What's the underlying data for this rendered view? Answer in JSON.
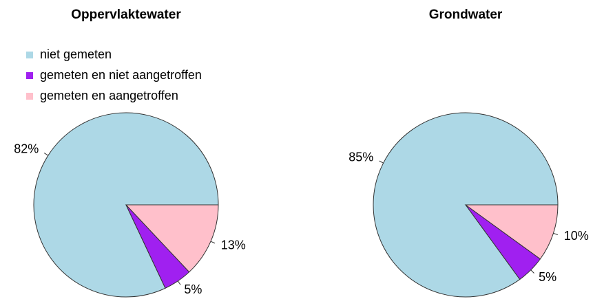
{
  "chart_data": [
    {
      "type": "pie",
      "title": "Oppervlaktewater",
      "categories": [
        "niet gemeten",
        "gemeten en niet aangetroffen",
        "gemeten en aangetroffen"
      ],
      "values": [
        82,
        5,
        13
      ],
      "value_labels": [
        "82%",
        "5%",
        "13%"
      ],
      "colors": [
        "#add8e6",
        "#a020f0",
        "#ffc0cb"
      ]
    },
    {
      "type": "pie",
      "title": "Grondwater",
      "values": [
        85,
        5,
        10
      ],
      "value_labels": [
        "85%",
        "5%",
        "10%"
      ],
      "colors": [
        "#add8e6",
        "#a020f0",
        "#ffc0cb"
      ]
    }
  ]
}
